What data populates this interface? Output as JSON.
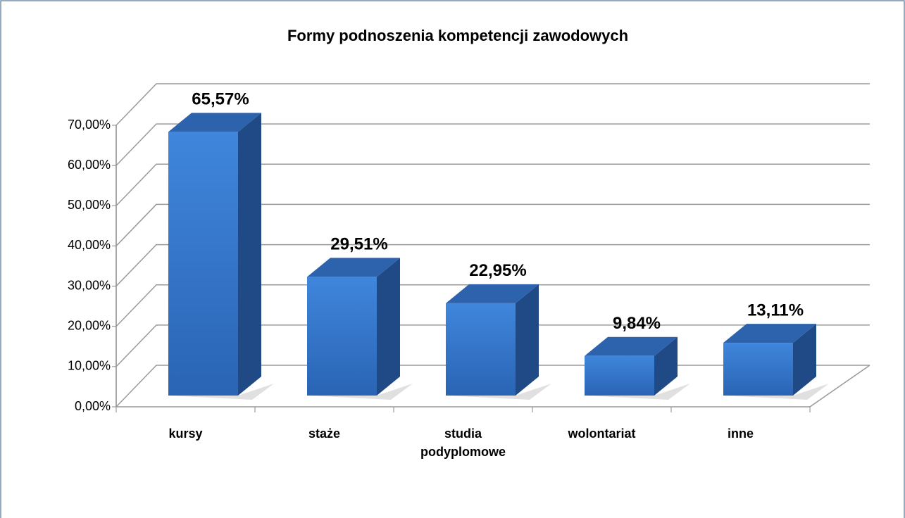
{
  "chart_data": {
    "type": "bar3d",
    "title": "Formy podnoszenia kompetencji zawodowych",
    "categories": [
      "kursy",
      "staże",
      "studia podyplomowe",
      "wolontariat",
      "inne"
    ],
    "values": [
      65.57,
      29.51,
      22.95,
      9.84,
      13.11
    ],
    "value_labels": [
      "65,57%",
      "29,51%",
      "22,95%",
      "9,84%",
      "13,11%"
    ],
    "color": "#3a7bd5",
    "ylim": [
      0,
      70
    ],
    "yticks": [
      {
        "value": 0,
        "label": "0,00%"
      },
      {
        "value": 10,
        "label": "10,00%"
      },
      {
        "value": 20,
        "label": "20,00%"
      },
      {
        "value": 30,
        "label": "30,00%"
      },
      {
        "value": 40,
        "label": "40,00%"
      },
      {
        "value": 50,
        "label": "50,00%"
      },
      {
        "value": 60,
        "label": "60,00%"
      },
      {
        "value": 70,
        "label": "70,00%"
      }
    ],
    "grid": true
  }
}
